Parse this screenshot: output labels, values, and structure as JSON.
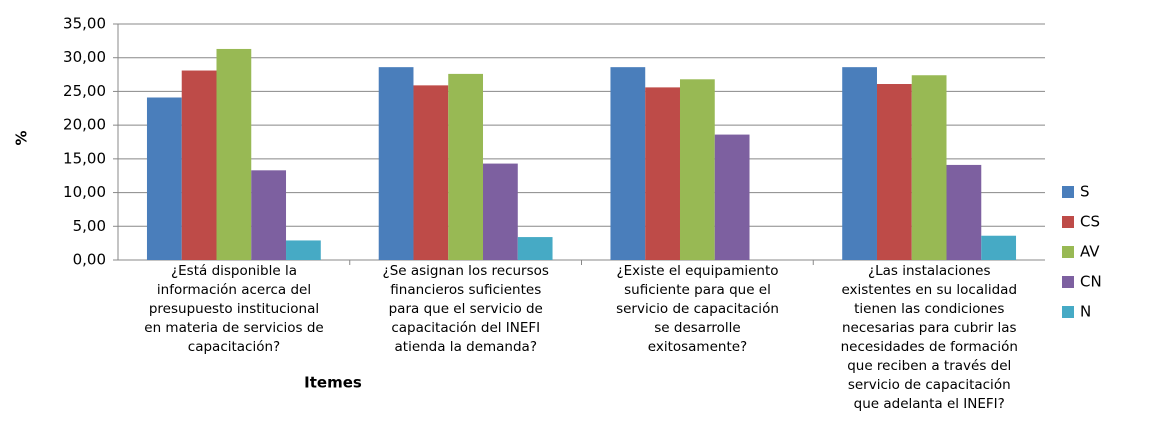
{
  "chart_data": {
    "type": "bar",
    "y_label": "%",
    "x_label": "Itemes",
    "categories": [
      "¿Está disponible la\ninformación acerca del\npresupuesto institucional\nen materia de servicios de\ncapacitación?",
      "¿Se asignan los recursos\nfinancieros suficientes\npara que el servicio de\ncapacitación del INEFI\natienda la demanda?",
      "¿Existe el equipamiento\nsuficiente para que el\nservicio de capacitación\nse desarrolle\nexitosamente?",
      "¿Las instalaciones\nexistentes en su localidad\ntienen las condiciones\nnecesarias  para cubrir las\nnecesidades de formación\nque reciben a través del\nservicio de capacitación\nque adelanta el INEFI?"
    ],
    "series": [
      {
        "name": "S",
        "color": "#4a7ebb",
        "values": [
          24.1,
          28.6,
          28.6,
          28.6
        ]
      },
      {
        "name": "CS",
        "color": "#be4b48",
        "values": [
          28.1,
          25.9,
          25.6,
          26.1
        ]
      },
      {
        "name": "AV",
        "color": "#98b954",
        "values": [
          31.3,
          27.6,
          26.8,
          27.4
        ]
      },
      {
        "name": "CN",
        "color": "#7d60a0",
        "values": [
          13.3,
          14.3,
          18.6,
          14.1
        ]
      },
      {
        "name": "N",
        "color": "#46aac5",
        "values": [
          2.9,
          3.4,
          0,
          3.6
        ]
      }
    ],
    "ylim": [
      0,
      35
    ],
    "yticks": [
      {
        "value": 0,
        "label": "0,00"
      },
      {
        "value": 5,
        "label": "5,00"
      },
      {
        "value": 10,
        "label": "10,00"
      },
      {
        "value": 15,
        "label": "15,00"
      },
      {
        "value": 20,
        "label": "20,00"
      },
      {
        "value": 25,
        "label": "25,00"
      },
      {
        "value": 30,
        "label": "30,00"
      },
      {
        "value": 35,
        "label": "35,00"
      }
    ],
    "grid": true,
    "legend": "right"
  }
}
